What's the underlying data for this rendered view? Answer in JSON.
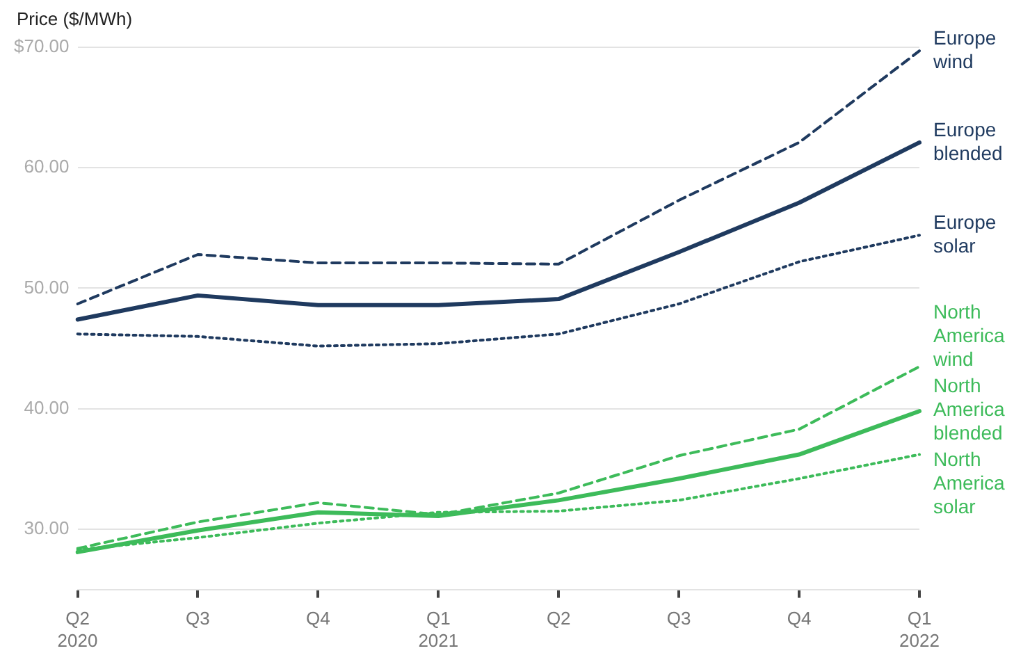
{
  "chart_data": {
    "type": "line",
    "ylabel": "Price ($/MWh)",
    "categories": [
      "Q2\n2020",
      "Q3",
      "Q4",
      "Q1\n2021",
      "Q2",
      "Q3",
      "Q4",
      "Q1\n2022"
    ],
    "ylim": [
      25,
      70
    ],
    "yticks": [
      {
        "value": 30,
        "label": "30.00"
      },
      {
        "value": 40,
        "label": "40.00"
      },
      {
        "value": 50,
        "label": "50.00"
      },
      {
        "value": 60,
        "label": "60.00"
      },
      {
        "value": 70,
        "label": "$70.00"
      }
    ],
    "grid": "y",
    "legend": false,
    "marker": "none",
    "series": [
      {
        "name": "Europe wind",
        "color": "#1f3a5f",
        "line_style": "dashed",
        "values": [
          48.7,
          52.8,
          52.1,
          52.1,
          52.0,
          57.3,
          62.1,
          69.7
        ]
      },
      {
        "name": "Europe blended",
        "color": "#1f3a5f",
        "line_style": "solid",
        "values": [
          47.4,
          49.4,
          48.6,
          48.6,
          49.1,
          53.0,
          57.1,
          62.1
        ]
      },
      {
        "name": "Europe solar",
        "color": "#1f3a5f",
        "line_style": "dotted",
        "values": [
          46.2,
          46.0,
          45.2,
          45.4,
          46.2,
          48.7,
          52.2,
          54.4
        ]
      },
      {
        "name": "North America wind",
        "color": "#3dbb5a",
        "line_style": "dashed",
        "values": [
          28.4,
          30.6,
          32.2,
          31.2,
          33.0,
          36.1,
          38.3,
          43.5
        ]
      },
      {
        "name": "North America blended",
        "color": "#3dbb5a",
        "line_style": "solid",
        "values": [
          28.1,
          29.9,
          31.4,
          31.1,
          32.4,
          34.2,
          36.2,
          39.8
        ]
      },
      {
        "name": "North America solar",
        "color": "#3dbb5a",
        "line_style": "dotted",
        "values": [
          28.3,
          29.3,
          30.5,
          31.4,
          31.5,
          32.4,
          34.2,
          36.2
        ]
      }
    ]
  }
}
